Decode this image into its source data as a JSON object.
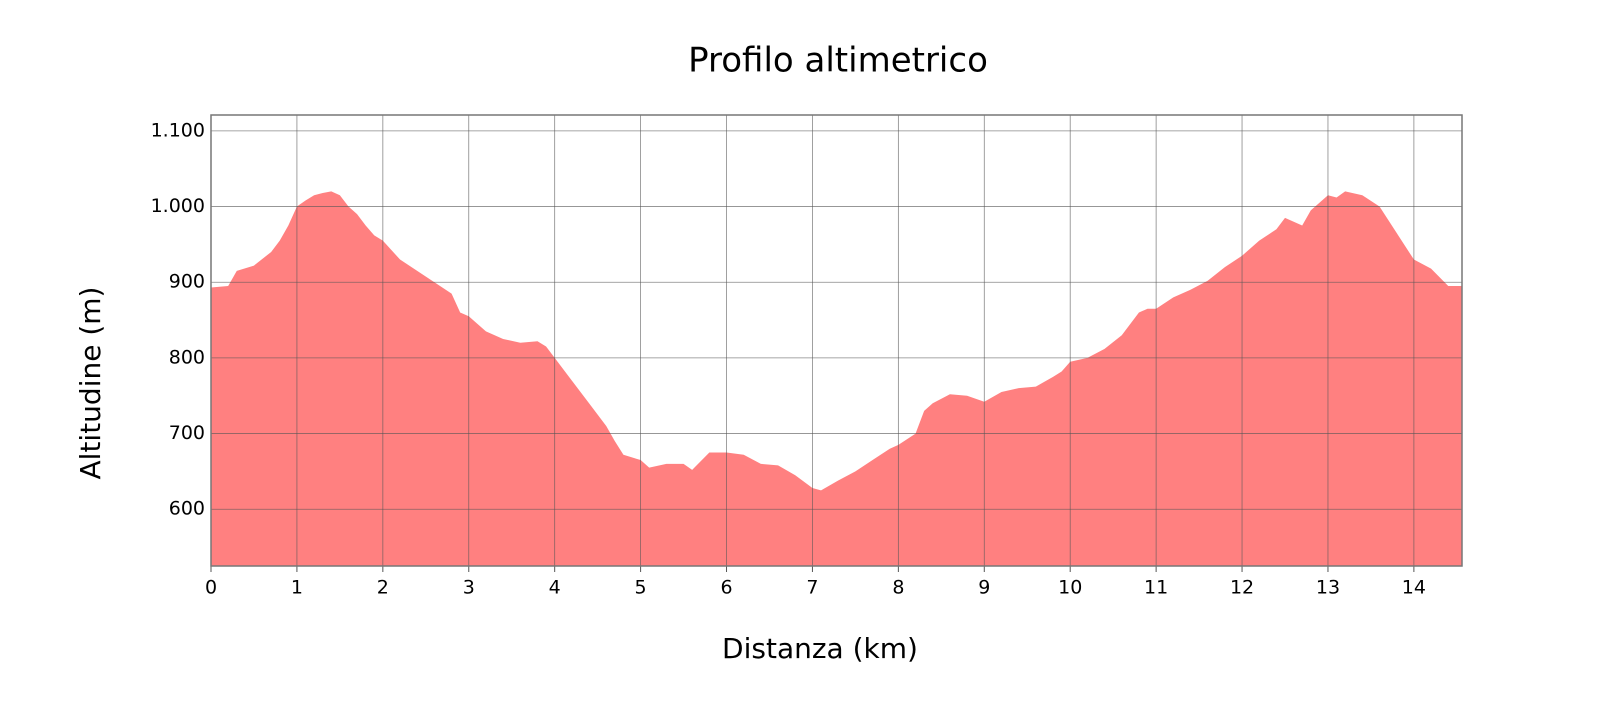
{
  "chart_data": {
    "type": "area",
    "title": "Profilo altimetrico",
    "xlabel": "Distanza (km)",
    "ylabel": "Altitudine (m)",
    "color": "#ff8080",
    "grid": true,
    "x": [
      0,
      0.2,
      0.3,
      0.5,
      0.7,
      0.8,
      0.9,
      1.0,
      1.1,
      1.2,
      1.3,
      1.4,
      1.5,
      1.6,
      1.7,
      1.8,
      1.9,
      2.0,
      2.2,
      2.4,
      2.6,
      2.8,
      2.9,
      3.0,
      3.2,
      3.4,
      3.6,
      3.8,
      3.9,
      4.0,
      4.2,
      4.4,
      4.6,
      4.7,
      4.8,
      5.0,
      5.1,
      5.3,
      5.5,
      5.6,
      5.8,
      6.0,
      6.2,
      6.4,
      6.6,
      6.8,
      7.0,
      7.1,
      7.3,
      7.5,
      7.7,
      7.9,
      8.0,
      8.2,
      8.3,
      8.4,
      8.6,
      8.8,
      9.0,
      9.2,
      9.4,
      9.6,
      9.8,
      9.9,
      10.0,
      10.2,
      10.4,
      10.6,
      10.8,
      10.9,
      11.0,
      11.2,
      11.4,
      11.6,
      11.8,
      12.0,
      12.2,
      12.4,
      12.5,
      12.7,
      12.8,
      13.0,
      13.1,
      13.2,
      13.4,
      13.6,
      13.8,
      14.0,
      14.2,
      14.4,
      14.56
    ],
    "values": [
      893,
      895,
      915,
      922,
      940,
      955,
      975,
      1000,
      1008,
      1015,
      1018,
      1020,
      1015,
      1000,
      990,
      975,
      962,
      955,
      930,
      915,
      900,
      885,
      860,
      855,
      835,
      825,
      820,
      822,
      815,
      800,
      770,
      740,
      710,
      690,
      672,
      665,
      655,
      660,
      660,
      652,
      675,
      675,
      672,
      660,
      658,
      645,
      628,
      625,
      638,
      650,
      665,
      680,
      685,
      700,
      730,
      740,
      752,
      750,
      742,
      755,
      760,
      762,
      775,
      782,
      795,
      800,
      812,
      830,
      860,
      865,
      865,
      880,
      890,
      902,
      920,
      935,
      955,
      970,
      985,
      975,
      995,
      1015,
      1012,
      1020,
      1015,
      1000,
      965,
      930,
      918,
      895,
      895
    ],
    "xlim": [
      0,
      14.56
    ],
    "xticks": [
      0,
      1,
      2,
      3,
      4,
      5,
      6,
      7,
      8,
      9,
      10,
      11,
      12,
      13,
      14
    ],
    "ylim": [
      525,
      1121
    ],
    "yticks": [
      600,
      700,
      800,
      900,
      {
        "value": 1000,
        "label": "1.000"
      },
      {
        "value": 1100,
        "label": "1.100"
      }
    ]
  }
}
